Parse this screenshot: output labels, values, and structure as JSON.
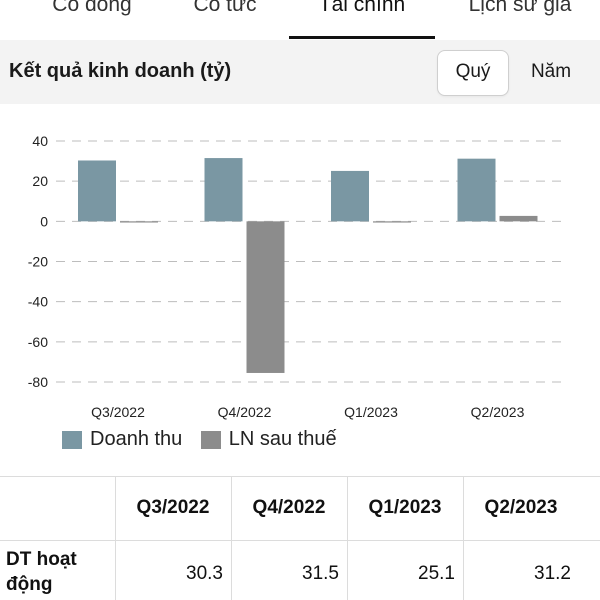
{
  "tabs": [
    {
      "label": "Cổ đông",
      "active": false
    },
    {
      "label": "Cổ tức",
      "active": false
    },
    {
      "label": "Tài chính",
      "active": true
    },
    {
      "label": "Lịch sử giá",
      "active": false
    }
  ],
  "header": {
    "title": "Kết quả kinh doanh (tỷ)",
    "period_options": [
      {
        "label": "Quý",
        "selected": true
      },
      {
        "label": "Năm",
        "selected": false
      }
    ]
  },
  "chart_data": {
    "type": "bar",
    "categories": [
      "Q3/2022",
      "Q4/2022",
      "Q1/2023",
      "Q2/2023"
    ],
    "series": [
      {
        "name": "Doanh thu",
        "color": "#7a97a3",
        "values": [
          30.3,
          31.5,
          25.1,
          31.2
        ]
      },
      {
        "name": "LN sau thuế",
        "color": "#8c8c8c",
        "values": [
          0,
          -75.5,
          -0.6,
          2.7
        ]
      }
    ],
    "y_ticks": [
      40,
      20,
      0,
      -20,
      -40,
      -60,
      -80
    ],
    "ylim": [
      -80,
      40
    ],
    "grid": true,
    "legend_position": "bottom-left"
  },
  "table": {
    "columns": [
      "Q3/2022",
      "Q4/2022",
      "Q1/2023",
      "Q2/2023"
    ],
    "rows": [
      {
        "label": "DT hoạt động",
        "values": [
          "30.3",
          "31.5",
          "25.1",
          "31.2"
        ]
      }
    ]
  }
}
